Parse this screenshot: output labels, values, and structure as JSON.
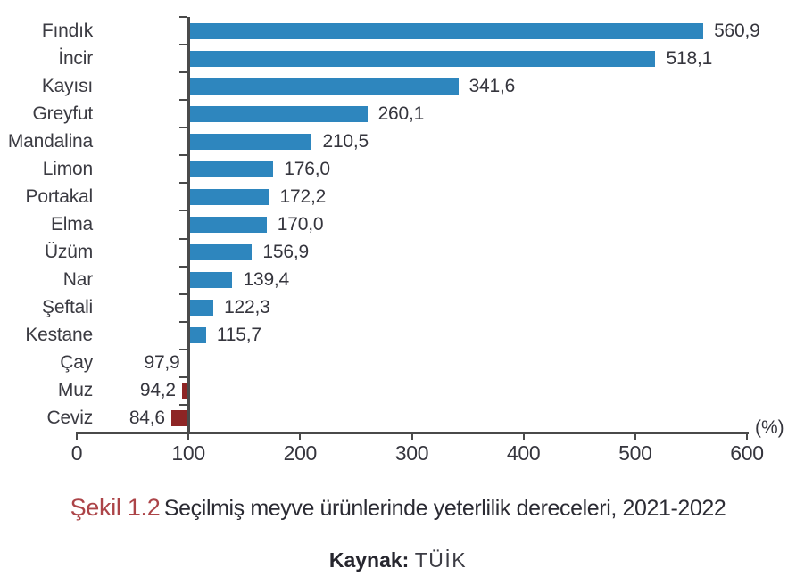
{
  "chart_data": {
    "type": "bar",
    "orientation": "horizontal",
    "title": "Seçilmiş meyve ürünlerinde yeterlilik dereceleri, 2021-2022",
    "xlabel": "(%)",
    "ylabel": "",
    "xlim": [
      0,
      600
    ],
    "x_ticks": [
      0,
      100,
      200,
      300,
      400,
      500,
      600
    ],
    "baseline": 100,
    "grid": false,
    "legend": false,
    "categories": [
      "Fındık",
      "İncir",
      "Kayısı",
      "Greyfut",
      "Mandalina",
      "Limon",
      "Portakal",
      "Elma",
      "Üzüm",
      "Nar",
      "Şeftali",
      "Kestane",
      "Çay",
      "Muz",
      "Ceviz"
    ],
    "values": [
      560.9,
      518.1,
      341.6,
      260.1,
      210.5,
      176.0,
      172.2,
      170.0,
      156.9,
      139.4,
      122.3,
      115.7,
      97.9,
      94.2,
      84.6
    ],
    "value_labels": [
      "560,9",
      "518,1",
      "341,6",
      "260,1",
      "210,5",
      "176,0",
      "172,2",
      "170,0",
      "156,9",
      "139,4",
      "122,3",
      "115,7",
      "97,9",
      "94,2",
      "84,6"
    ],
    "bar_color_above": "#2E86BE",
    "bar_color_below": "#8E2525",
    "axis_color": "#4A4A4A",
    "text_color": "#35353D"
  },
  "caption": {
    "figure_label": "Şekil 1.2",
    "label_color": "#AC4448",
    "title_color": "#2B2B33"
  },
  "source": {
    "label": "Kaynak:",
    "value": "TÜİK",
    "label_color": "#26262E",
    "value_color": "#3C3C44"
  }
}
